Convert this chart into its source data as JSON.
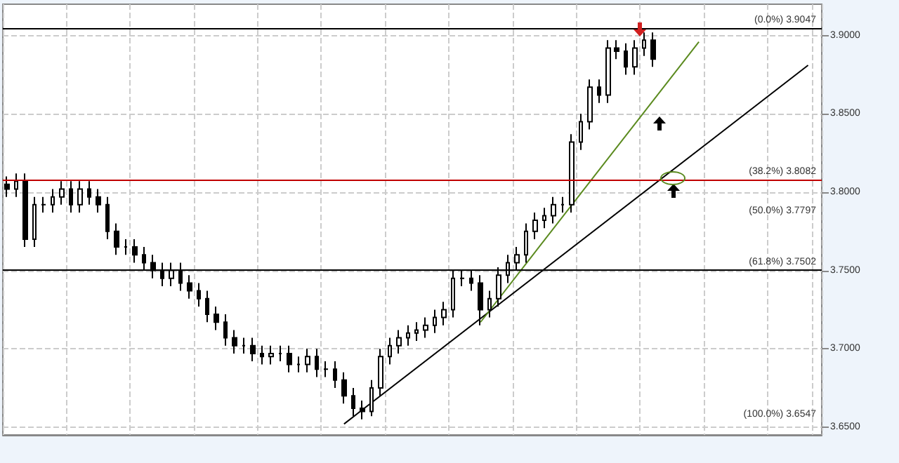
{
  "chart_data": {
    "type": "candlestick",
    "grid": true,
    "color": "#000000",
    "ylim": [
      3.645,
      3.92
    ],
    "yticks": [
      {
        "value": 3.65,
        "label": "3.6500"
      },
      {
        "value": 3.7,
        "label": "3.7000"
      },
      {
        "value": 3.75,
        "label": "3.7500"
      },
      {
        "value": 3.8,
        "label": "3.8000"
      },
      {
        "value": 3.85,
        "label": "3.8500"
      },
      {
        "value": 3.9,
        "label": "3.9000"
      }
    ],
    "categories": [
      null,
      null,
      null,
      null,
      null,
      null,
      null,
      null,
      null,
      null,
      null,
      null,
      null,
      null,
      null,
      null,
      null,
      null,
      null,
      null,
      null,
      null,
      null,
      null,
      null,
      null,
      null,
      null,
      null,
      null,
      null,
      null,
      null,
      null,
      null,
      null,
      null,
      null,
      null,
      null,
      null,
      null,
      null,
      null,
      null,
      null,
      null,
      null,
      null,
      null,
      null,
      null,
      null,
      null,
      null,
      null,
      null,
      null,
      null,
      null,
      null,
      null,
      null,
      null,
      null,
      null,
      null,
      null,
      null,
      null,
      null,
      null,
      null,
      null,
      null,
      null,
      null,
      null,
      null,
      null,
      null,
      null,
      null,
      null,
      null,
      null,
      null,
      null,
      null,
      null
    ],
    "ohlc": [
      [
        3.805,
        3.81,
        3.797,
        3.802
      ],
      [
        3.802,
        3.812,
        3.797,
        3.807
      ],
      [
        3.807,
        3.812,
        3.765,
        3.77
      ],
      [
        3.77,
        3.797,
        3.765,
        3.792
      ],
      [
        3.792,
        3.797,
        3.787,
        3.792
      ],
      [
        3.792,
        3.802,
        3.787,
        3.797
      ],
      [
        3.797,
        3.807,
        3.792,
        3.802
      ],
      [
        3.802,
        3.807,
        3.787,
        3.792
      ],
      [
        3.792,
        3.807,
        3.787,
        3.802
      ],
      [
        3.802,
        3.807,
        3.792,
        3.797
      ],
      [
        3.797,
        3.802,
        3.787,
        3.792
      ],
      [
        3.792,
        3.797,
        3.77,
        3.775
      ],
      [
        3.775,
        3.78,
        3.76,
        3.765
      ],
      [
        3.765,
        3.77,
        3.76,
        3.765
      ],
      [
        3.765,
        3.77,
        3.755,
        3.76
      ],
      [
        3.76,
        3.765,
        3.75,
        3.755
      ],
      [
        3.755,
        3.76,
        3.745,
        3.75
      ],
      [
        3.75,
        3.755,
        3.74,
        3.745
      ],
      [
        3.745,
        3.755,
        3.74,
        3.75
      ],
      [
        3.75,
        3.755,
        3.737,
        3.742
      ],
      [
        3.742,
        3.747,
        3.732,
        3.737
      ],
      [
        3.737,
        3.742,
        3.727,
        3.732
      ],
      [
        3.732,
        3.737,
        3.717,
        3.722
      ],
      [
        3.722,
        3.727,
        3.712,
        3.717
      ],
      [
        3.717,
        3.722,
        3.702,
        3.707
      ],
      [
        3.707,
        3.712,
        3.697,
        3.702
      ],
      [
        3.702,
        3.707,
        3.697,
        3.702
      ],
      [
        3.702,
        3.707,
        3.692,
        3.697
      ],
      [
        3.697,
        3.702,
        3.69,
        3.695
      ],
      [
        3.695,
        3.702,
        3.69,
        3.697
      ],
      [
        3.697,
        3.702,
        3.692,
        3.697
      ],
      [
        3.697,
        3.702,
        3.685,
        3.69
      ],
      [
        3.69,
        3.695,
        3.685,
        3.69
      ],
      [
        3.69,
        3.7,
        3.685,
        3.695
      ],
      [
        3.695,
        3.7,
        3.682,
        3.687
      ],
      [
        3.687,
        3.692,
        3.682,
        3.687
      ],
      [
        3.687,
        3.692,
        3.675,
        3.68
      ],
      [
        3.68,
        3.685,
        3.665,
        3.67
      ],
      [
        3.67,
        3.675,
        3.657,
        3.662
      ],
      [
        3.662,
        3.667,
        3.655,
        3.66
      ],
      [
        3.66,
        3.68,
        3.657,
        3.675
      ],
      [
        3.675,
        3.7,
        3.67,
        3.695
      ],
      [
        3.695,
        3.707,
        3.69,
        3.702
      ],
      [
        3.702,
        3.712,
        3.697,
        3.707
      ],
      [
        3.707,
        3.715,
        3.702,
        3.71
      ],
      [
        3.71,
        3.717,
        3.705,
        3.712
      ],
      [
        3.712,
        3.72,
        3.707,
        3.715
      ],
      [
        3.715,
        3.725,
        3.71,
        3.72
      ],
      [
        3.72,
        3.73,
        3.715,
        3.725
      ],
      [
        3.725,
        3.75,
        3.72,
        3.745
      ],
      [
        3.745,
        3.75,
        3.74,
        3.745
      ],
      [
        3.745,
        3.75,
        3.737,
        3.742
      ],
      [
        3.742,
        3.747,
        3.715,
        3.725
      ],
      [
        3.725,
        3.737,
        3.72,
        3.732
      ],
      [
        3.732,
        3.752,
        3.727,
        3.747
      ],
      [
        3.747,
        3.76,
        3.742,
        3.755
      ],
      [
        3.755,
        3.765,
        3.75,
        3.76
      ],
      [
        3.76,
        3.78,
        3.755,
        3.775
      ],
      [
        3.775,
        3.787,
        3.77,
        3.782
      ],
      [
        3.782,
        3.79,
        3.777,
        3.785
      ],
      [
        3.785,
        3.797,
        3.78,
        3.792
      ],
      [
        3.792,
        3.797,
        3.787,
        3.792
      ],
      [
        3.792,
        3.837,
        3.787,
        3.832
      ],
      [
        3.832,
        3.85,
        3.827,
        3.845
      ],
      [
        3.845,
        3.872,
        3.84,
        3.867
      ],
      [
        3.867,
        3.872,
        3.857,
        3.862
      ],
      [
        3.862,
        3.897,
        3.857,
        3.892
      ],
      [
        3.892,
        3.897,
        3.885,
        3.89
      ],
      [
        3.89,
        3.895,
        3.875,
        3.88
      ],
      [
        3.88,
        3.897,
        3.875,
        3.892
      ],
      [
        3.892,
        3.902,
        3.887,
        3.897
      ],
      [
        3.897,
        3.902,
        3.88,
        3.885
      ],
      null,
      null,
      null,
      null,
      null,
      null,
      null,
      null,
      null,
      null,
      null,
      null,
      null,
      null,
      null,
      null,
      null,
      null
    ],
    "series": [
      {
        "type": "line",
        "color": "#000000",
        "values": [
          null,
          null,
          null,
          null,
          null,
          null,
          null,
          null,
          null,
          null,
          null,
          null,
          null,
          null,
          null,
          null,
          null,
          null,
          null,
          null,
          null,
          null,
          null,
          null,
          null,
          null,
          null,
          null,
          null,
          null,
          null,
          null,
          null,
          null,
          null,
          null,
          null,
          3.652,
          null,
          null,
          null,
          null,
          null,
          null,
          null,
          null,
          null,
          null,
          null,
          null,
          null,
          null,
          null,
          null,
          null,
          null,
          null,
          null,
          null,
          null,
          null,
          null,
          null,
          null,
          null,
          null,
          null,
          null,
          null,
          null,
          null,
          null,
          null,
          null,
          null,
          null,
          null,
          null,
          null,
          null,
          null,
          null,
          null,
          null,
          null,
          null,
          null,
          null,
          3.881,
          null
        ]
      },
      {
        "type": "line",
        "color": "#5a8a1e",
        "values": [
          null,
          null,
          null,
          null,
          null,
          null,
          null,
          null,
          null,
          null,
          null,
          null,
          null,
          null,
          null,
          null,
          null,
          null,
          null,
          null,
          null,
          null,
          null,
          null,
          null,
          null,
          null,
          null,
          null,
          null,
          null,
          null,
          null,
          null,
          null,
          null,
          null,
          null,
          null,
          null,
          null,
          null,
          null,
          null,
          null,
          null,
          null,
          null,
          null,
          null,
          null,
          null,
          3.717,
          null,
          null,
          null,
          null,
          null,
          null,
          null,
          null,
          null,
          null,
          null,
          null,
          null,
          null,
          null,
          null,
          null,
          null,
          null,
          null,
          null,
          null,
          null,
          3.896,
          null,
          null,
          null,
          null,
          null,
          null,
          null,
          null,
          null,
          null,
          null,
          null,
          null
        ]
      }
    ],
    "ref_lines": [
      {
        "axis": "y",
        "value": 3.9047,
        "label": "(0.0%) 3.9047",
        "color": "#000000"
      },
      {
        "axis": "y",
        "value": 3.8082,
        "label": "(38.2%) 3.8082",
        "color": "#c00000"
      },
      {
        "axis": "y",
        "value": 3.7502,
        "label": "(61.8%) 3.7502",
        "color": "#000000"
      }
    ],
    "annotations": [
      "(50.0%) 3.7797",
      "(100.0%) 3.6547"
    ]
  }
}
